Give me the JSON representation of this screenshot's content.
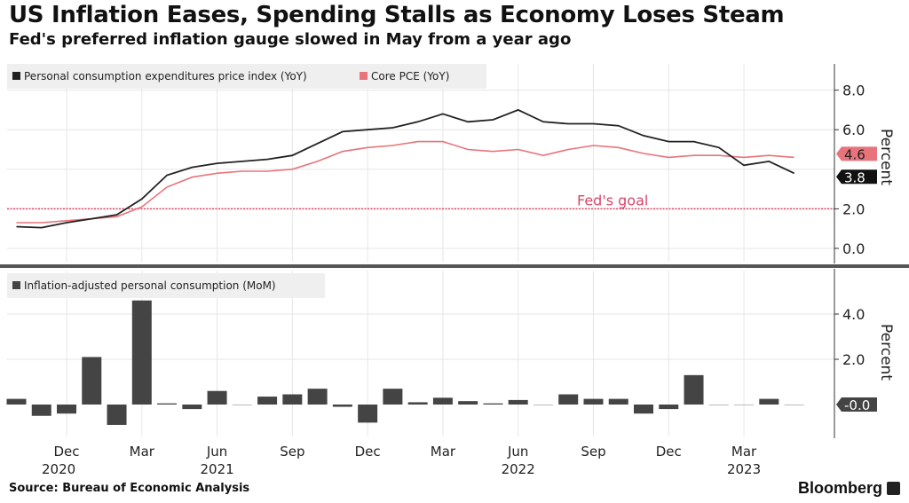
{
  "title": "US Inflation Eases, Spending Stalls as Economy Loses Steam",
  "subtitle": "Fed's preferred inflation gauge slowed in May from a year ago",
  "source": "Source: Bureau of Economic Analysis",
  "brand": "Bloomberg",
  "colors": {
    "pce": "#222222",
    "core": "#e8737a",
    "goal": "#d9476a",
    "bars": "#444444",
    "legend_bg": "#efefef"
  },
  "chart_data": [
    {
      "type": "line",
      "x_start": "2020-10",
      "x_end": "2023-05",
      "frequency": "monthly",
      "ylabel": "Percent",
      "ylim": [
        -0.5,
        9.3
      ],
      "yticks": [
        "8.0",
        "6.0",
        "2.0",
        "0.0"
      ],
      "grid": true,
      "legend_placement": "top-left",
      "annotation": {
        "text": "Fed's goal",
        "y": 2.0
      },
      "last_value_labels": [
        "4.6",
        "3.8"
      ],
      "series": [
        {
          "name": "Personal consumption expenditures price index (YoY)",
          "values": [
            1.1,
            1.05,
            1.3,
            1.5,
            1.7,
            2.5,
            3.7,
            4.1,
            4.3,
            4.4,
            4.5,
            4.7,
            5.3,
            5.9,
            6.0,
            6.1,
            6.4,
            6.8,
            6.4,
            6.5,
            7.0,
            6.4,
            6.3,
            6.3,
            6.2,
            5.7,
            5.4,
            5.4,
            5.1,
            4.2,
            4.4,
            3.8
          ]
        },
        {
          "name": "Core PCE (YoY)",
          "values": [
            1.3,
            1.3,
            1.4,
            1.5,
            1.6,
            2.1,
            3.1,
            3.6,
            3.8,
            3.9,
            3.9,
            4.0,
            4.4,
            4.9,
            5.1,
            5.2,
            5.4,
            5.4,
            5.0,
            4.9,
            5.0,
            4.7,
            5.0,
            5.2,
            5.1,
            4.8,
            4.6,
            4.7,
            4.7,
            4.6,
            4.7,
            4.6
          ]
        }
      ]
    },
    {
      "type": "bar",
      "x_start": "2020-10",
      "x_end": "2023-05",
      "frequency": "monthly",
      "ylabel": "Percent",
      "ylim": [
        -1.4,
        5.9
      ],
      "yticks": [
        "4.0",
        "2.0"
      ],
      "grid": true,
      "legend_placement": "top-left",
      "last_value_label": "-0.0",
      "series": [
        {
          "name": "Inflation-adjusted personal consumption (MoM)",
          "values": [
            0.25,
            -0.5,
            -0.4,
            2.1,
            -0.9,
            4.6,
            0.05,
            -0.2,
            0.6,
            0.0,
            0.35,
            0.45,
            0.7,
            -0.1,
            -0.8,
            0.7,
            0.1,
            0.3,
            0.15,
            0.05,
            0.2,
            0.0,
            0.45,
            0.25,
            0.25,
            -0.4,
            -0.2,
            1.3,
            0.0,
            0.0,
            0.25,
            0.0
          ]
        }
      ]
    }
  ],
  "x_ticks": [
    {
      "label": "Dec",
      "year": "2020",
      "index": 2
    },
    {
      "label": "Mar",
      "year": "",
      "index": 5
    },
    {
      "label": "Jun",
      "year": "2021",
      "index": 8
    },
    {
      "label": "Sep",
      "year": "",
      "index": 11
    },
    {
      "label": "Dec",
      "year": "",
      "index": 14
    },
    {
      "label": "Mar",
      "year": "",
      "index": 17
    },
    {
      "label": "Jun",
      "year": "2022",
      "index": 20
    },
    {
      "label": "Sep",
      "year": "",
      "index": 23
    },
    {
      "label": "Dec",
      "year": "",
      "index": 26
    },
    {
      "label": "Mar",
      "year": "2023",
      "index": 29
    }
  ]
}
